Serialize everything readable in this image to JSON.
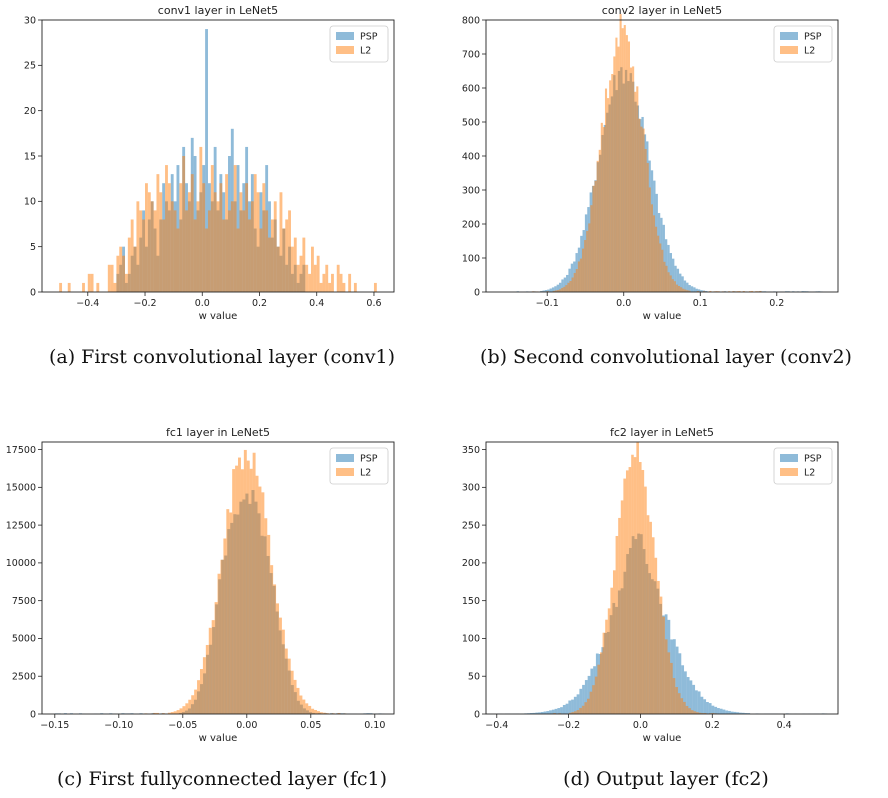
{
  "colors": {
    "psp": "#1f77b4",
    "l2": "#ff7f0e",
    "alpha": 0.5
  },
  "captions": [
    "(a) First convolutional layer (conv1)",
    "(b) Second convolutional layer (conv2)",
    "(c) First fullyconnected layer (fc1)",
    "(d) Output layer (fc2)"
  ],
  "chart_data": [
    {
      "type": "histogram",
      "title": "conv1 layer in LeNet5",
      "xlabel": "w value",
      "xlim": [
        -0.56,
        0.67
      ],
      "ylim": [
        0,
        30
      ],
      "xticks": [
        -0.4,
        -0.2,
        0.0,
        0.2,
        0.4,
        0.6
      ],
      "xtick_labels": [
        "−0.4",
        "−0.2",
        "0.0",
        "0.2",
        "0.4",
        "0.6"
      ],
      "yticks": [
        0,
        5,
        10,
        15,
        20,
        25,
        30
      ],
      "ytick_labels": [
        "0",
        "5",
        "10",
        "15",
        "20",
        "25",
        "30"
      ],
      "legend": "top-right",
      "series": [
        {
          "name": "PSP",
          "bin_start": -0.3,
          "bin_width": 0.01,
          "values": [
            2,
            3,
            5,
            1,
            2,
            4,
            5,
            3,
            6,
            9,
            5,
            8,
            10,
            7,
            4,
            8,
            12,
            10,
            9,
            13,
            10,
            14,
            8,
            16,
            12,
            10,
            17,
            15,
            9,
            11,
            14,
            29,
            12,
            10,
            16,
            9,
            13,
            11,
            8,
            15,
            18,
            10,
            14,
            9,
            12,
            16,
            10,
            13,
            7,
            5,
            11,
            9,
            14,
            10,
            6,
            8,
            5,
            4,
            7,
            3,
            5,
            2,
            3,
            1,
            2,
            3
          ]
        },
        {
          "name": "L2",
          "bin_start": -0.5,
          "bin_width": 0.01,
          "values": [
            1,
            0,
            0,
            1,
            0,
            0,
            0,
            0,
            1,
            0,
            2,
            2,
            0,
            1,
            0,
            0,
            0,
            3,
            3,
            1,
            4,
            5,
            4,
            2,
            6,
            8,
            5,
            10,
            9,
            8,
            12,
            11,
            10,
            9,
            13,
            11,
            8,
            14,
            12,
            10,
            9,
            7,
            12,
            15,
            9,
            11,
            13,
            8,
            10,
            16,
            12,
            7,
            9,
            14,
            11,
            10,
            12,
            8,
            13,
            9,
            10,
            14,
            7,
            11,
            9,
            12,
            8,
            10,
            13,
            11,
            7,
            12,
            9,
            6,
            8,
            10,
            5,
            11,
            7,
            8,
            9,
            5,
            6,
            3,
            4,
            6,
            3,
            2,
            5,
            3,
            4,
            1,
            2,
            3,
            1,
            2,
            0,
            3,
            2,
            1,
            0,
            2,
            0,
            1,
            0,
            0,
            0,
            0,
            0,
            0,
            1
          ]
        }
      ]
    },
    {
      "type": "histogram",
      "title": "conv2 layer in LeNet5",
      "xlabel": "w value",
      "xlim": [
        -0.18,
        0.28
      ],
      "ylim": [
        0,
        800
      ],
      "xticks": [
        -0.1,
        0.0,
        0.1,
        0.2
      ],
      "xtick_labels": [
        "−0.1",
        "0.0",
        "0.1",
        "0.2"
      ],
      "yticks": [
        0,
        100,
        200,
        300,
        400,
        500,
        600,
        700,
        800
      ],
      "ytick_labels": [
        "0",
        "100",
        "200",
        "300",
        "400",
        "500",
        "600",
        "700",
        "800"
      ],
      "legend": "top-right",
      "series": [
        {
          "name": "PSP",
          "dist": "normal",
          "mean": 0.0,
          "sd": 0.033,
          "peak": 655,
          "range": [
            -0.14,
            0.26
          ],
          "bins": 130
        },
        {
          "name": "L2",
          "dist": "normal",
          "mean": -0.002,
          "sd": 0.027,
          "peak": 770,
          "range": [
            -0.12,
            0.18
          ],
          "bins": 110
        }
      ]
    },
    {
      "type": "histogram",
      "title": "fc1 layer in LeNet5",
      "xlabel": "w value",
      "xlim": [
        -0.16,
        0.115
      ],
      "ylim": [
        0,
        18000
      ],
      "xticks": [
        -0.15,
        -0.1,
        -0.05,
        0.0,
        0.05,
        0.1
      ],
      "xtick_labels": [
        "−0.15",
        "−0.10",
        "−0.05",
        "0.00",
        "0.05",
        "0.10"
      ],
      "yticks": [
        0,
        2500,
        5000,
        7500,
        10000,
        12500,
        15000,
        17500
      ],
      "ytick_labels": [
        "0",
        "2500",
        "5000",
        "7500",
        "10000",
        "12500",
        "15000",
        "17500"
      ],
      "legend": "top-right",
      "series": [
        {
          "name": "PSP",
          "dist": "flat-normal",
          "mean": 0.0,
          "sd": 0.019,
          "peak": 14100,
          "range": [
            -0.15,
            0.11
          ],
          "bins": 110
        },
        {
          "name": "L2",
          "dist": "normal",
          "mean": 0.0,
          "sd": 0.0185,
          "peak": 17700,
          "range": [
            -0.08,
            0.08
          ],
          "bins": 70
        }
      ]
    },
    {
      "type": "histogram",
      "title": "fc2 layer in LeNet5",
      "xlabel": "w value",
      "xlim": [
        -0.43,
        0.55
      ],
      "ylim": [
        0,
        360
      ],
      "xticks": [
        -0.4,
        -0.2,
        0.0,
        0.2,
        0.4
      ],
      "xtick_labels": [
        "−0.4",
        "−0.2",
        "0.0",
        "0.2",
        "0.4"
      ],
      "yticks": [
        0,
        50,
        100,
        150,
        200,
        250,
        300,
        350
      ],
      "ytick_labels": [
        "0",
        "50",
        "100",
        "150",
        "200",
        "250",
        "300",
        "350"
      ],
      "legend": "top-right",
      "series": [
        {
          "name": "PSP",
          "dist": "laplace-normal",
          "mean": -0.005,
          "sd": 0.085,
          "peak": 245,
          "range": [
            -0.4,
            0.52
          ],
          "bins": 120
        },
        {
          "name": "L2",
          "dist": "normal",
          "mean": -0.015,
          "sd": 0.055,
          "peak": 350,
          "range": [
            -0.25,
            0.22
          ],
          "bins": 65
        }
      ]
    }
  ]
}
